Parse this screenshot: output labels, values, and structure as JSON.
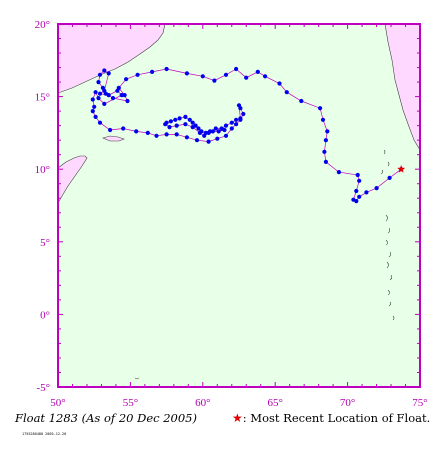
{
  "map": {
    "lon_range": [
      50,
      75
    ],
    "lat_range": [
      -5,
      20
    ],
    "x_ticks": [
      {
        "value": 50,
        "label": "50°"
      },
      {
        "value": 55,
        "label": "55°"
      },
      {
        "value": 60,
        "label": "60°"
      },
      {
        "value": 65,
        "label": "65°"
      },
      {
        "value": 70,
        "label": "70°"
      },
      {
        "value": 75,
        "label": "75°"
      }
    ],
    "y_ticks": [
      {
        "value": 20,
        "label": "20°"
      },
      {
        "value": 15,
        "label": "15°"
      },
      {
        "value": 10,
        "label": "10°"
      },
      {
        "value": 5,
        "label": "5°"
      },
      {
        "value": 0,
        "label": "0°"
      },
      {
        "value": -5,
        "label": "-5°"
      }
    ],
    "colors": {
      "ocean": "#e8ffe8",
      "land": "#ffd8ff",
      "frame": "#c000c0",
      "track": "#c000c0",
      "points": "#0000ee",
      "latest": "#e00000",
      "tick_labels": "#b000b0"
    },
    "track": [
      [
        73.7,
        10.0
      ],
      [
        72.9,
        9.4
      ],
      [
        72.0,
        8.7
      ],
      [
        71.3,
        8.4
      ],
      [
        70.8,
        8.1
      ],
      [
        70.6,
        7.8
      ],
      [
        70.4,
        7.9
      ],
      [
        70.6,
        8.5
      ],
      [
        70.8,
        9.2
      ],
      [
        70.7,
        9.6
      ],
      [
        69.4,
        9.8
      ],
      [
        68.5,
        10.5
      ],
      [
        68.4,
        11.2
      ],
      [
        68.5,
        12.0
      ],
      [
        68.6,
        12.6
      ],
      [
        68.3,
        13.4
      ],
      [
        68.1,
        14.2
      ],
      [
        66.8,
        14.7
      ],
      [
        65.8,
        15.3
      ],
      [
        65.3,
        15.9
      ],
      [
        64.3,
        16.4
      ],
      [
        63.8,
        16.7
      ],
      [
        63.0,
        16.3
      ],
      [
        62.3,
        16.9
      ],
      [
        61.6,
        16.5
      ],
      [
        60.8,
        16.1
      ],
      [
        60.0,
        16.4
      ],
      [
        58.9,
        16.6
      ],
      [
        57.5,
        16.9
      ],
      [
        56.5,
        16.7
      ],
      [
        55.5,
        16.5
      ],
      [
        54.7,
        16.2
      ],
      [
        54.2,
        15.6
      ],
      [
        54.6,
        15.1
      ],
      [
        54.8,
        14.7
      ],
      [
        53.8,
        14.9
      ],
      [
        53.3,
        15.2
      ],
      [
        53.1,
        15.6
      ],
      [
        52.8,
        16.0
      ],
      [
        52.9,
        16.5
      ],
      [
        53.2,
        16.8
      ],
      [
        53.5,
        16.6
      ],
      [
        53.2,
        15.4
      ],
      [
        52.9,
        15.2
      ],
      [
        53.5,
        15.1
      ],
      [
        54.1,
        15.4
      ],
      [
        54.4,
        15.1
      ],
      [
        53.2,
        14.5
      ],
      [
        52.8,
        14.9
      ],
      [
        52.6,
        15.3
      ],
      [
        52.4,
        14.8
      ],
      [
        52.5,
        14.3
      ],
      [
        52.4,
        14.0
      ],
      [
        52.6,
        13.6
      ],
      [
        52.9,
        13.2
      ],
      [
        53.6,
        12.7
      ],
      [
        54.5,
        12.8
      ],
      [
        55.4,
        12.6
      ],
      [
        56.2,
        12.5
      ],
      [
        56.8,
        12.3
      ],
      [
        57.5,
        12.4
      ],
      [
        58.2,
        12.4
      ],
      [
        58.9,
        12.2
      ],
      [
        59.6,
        12.0
      ],
      [
        60.4,
        11.9
      ],
      [
        61.0,
        12.1
      ],
      [
        61.6,
        12.3
      ],
      [
        62.0,
        12.8
      ],
      [
        62.3,
        13.1
      ],
      [
        62.6,
        13.4
      ],
      [
        62.8,
        13.8
      ],
      [
        62.6,
        14.2
      ],
      [
        62.5,
        14.4
      ],
      [
        62.6,
        13.5
      ],
      [
        62.3,
        13.4
      ],
      [
        62.0,
        13.2
      ],
      [
        61.6,
        13.0
      ],
      [
        61.3,
        12.8
      ],
      [
        60.9,
        12.8
      ],
      [
        60.5,
        12.6
      ],
      [
        60.2,
        12.5
      ],
      [
        59.9,
        12.6
      ],
      [
        59.7,
        12.8
      ],
      [
        59.5,
        13.0
      ],
      [
        59.3,
        13.2
      ],
      [
        59.1,
        13.4
      ],
      [
        58.8,
        13.6
      ],
      [
        58.4,
        13.5
      ],
      [
        58.1,
        13.4
      ],
      [
        57.8,
        13.3
      ],
      [
        57.5,
        13.2
      ],
      [
        57.4,
        13.1
      ],
      [
        57.7,
        12.9
      ],
      [
        58.2,
        13.0
      ],
      [
        58.8,
        13.1
      ],
      [
        59.3,
        12.9
      ],
      [
        59.8,
        12.5
      ],
      [
        60.1,
        12.3
      ],
      [
        60.4,
        12.5
      ],
      [
        60.7,
        12.6
      ],
      [
        61.1,
        12.6
      ],
      [
        61.5,
        12.7
      ]
    ],
    "latest": [
      73.7,
      10.0
    ]
  },
  "caption": {
    "float_label": "Float 1283 (As of 20 Dec 2005)",
    "legend_symbol": "★",
    "legend_text": ": Most Recent Location of Float.",
    "stamp": "1755280480 2005-12-20"
  }
}
